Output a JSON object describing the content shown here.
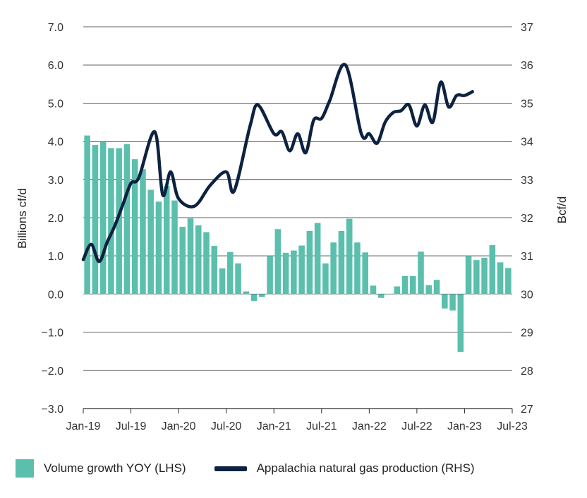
{
  "chart_data": {
    "type": "bar+line",
    "title": "",
    "ylabel_left": "Billions cf/d",
    "ylabel_right": "Bcf/d",
    "ylim_left": [
      -3.0,
      7.0
    ],
    "ylim_right": [
      27,
      37
    ],
    "left_ticks": [
      "7.0",
      "6.0",
      "5.0",
      "4.0",
      "3.0",
      "2.0",
      "1.0",
      "0.0",
      "−1.0",
      "−2.0",
      "−3.0"
    ],
    "left_tick_values": [
      7,
      6,
      5,
      4,
      3,
      2,
      1,
      0,
      -1,
      -2,
      -3
    ],
    "right_ticks": [
      "37",
      "36",
      "35",
      "34",
      "33",
      "32",
      "31",
      "30",
      "29",
      "28",
      "27"
    ],
    "right_tick_values": [
      37,
      36,
      35,
      34,
      33,
      32,
      31,
      30,
      29,
      28,
      27
    ],
    "x_ticks": [
      "Jan-19",
      "Jul-19",
      "Jan-20",
      "Jul-20",
      "Jan-21",
      "Jul-21",
      "Jan-22",
      "Jul-22",
      "Jan-23",
      "Jul-23"
    ],
    "x_tick_month_index": [
      0,
      6,
      12,
      18,
      24,
      30,
      36,
      42,
      48,
      54
    ],
    "months": [
      "Jan-19",
      "Feb-19",
      "Mar-19",
      "Apr-19",
      "May-19",
      "Jun-19",
      "Jul-19",
      "Aug-19",
      "Sep-19",
      "Oct-19",
      "Nov-19",
      "Dec-19",
      "Jan-20",
      "Feb-20",
      "Mar-20",
      "Apr-20",
      "May-20",
      "Jun-20",
      "Jul-20",
      "Aug-20",
      "Sep-20",
      "Oct-20",
      "Nov-20",
      "Dec-20",
      "Jan-21",
      "Feb-21",
      "Mar-21",
      "Apr-21",
      "May-21",
      "Jun-21",
      "Jul-21",
      "Aug-21",
      "Sep-21",
      "Oct-21",
      "Nov-21",
      "Dec-21",
      "Jan-22",
      "Feb-22",
      "Mar-22",
      "Apr-22",
      "May-22",
      "Jun-22",
      "Jul-22",
      "Aug-22",
      "Sep-22",
      "Oct-22",
      "Nov-22",
      "Dec-22",
      "Jan-23",
      "Feb-23",
      "Mar-23",
      "Apr-23",
      "May-23",
      "Jun-23"
    ],
    "series": [
      {
        "name": "Volume growth YOY (LHS)",
        "type": "bar",
        "axis": "left",
        "color": "#5bbfad",
        "values": [
          4.15,
          3.9,
          4.0,
          3.82,
          3.82,
          3.93,
          3.53,
          3.27,
          2.73,
          2.42,
          2.83,
          2.45,
          1.76,
          1.98,
          1.8,
          1.62,
          1.26,
          0.67,
          1.1,
          0.8,
          0.07,
          -0.18,
          -0.08,
          1.0,
          1.7,
          1.08,
          1.14,
          1.27,
          1.65,
          1.86,
          0.8,
          1.35,
          1.65,
          1.97,
          1.35,
          1.09,
          0.22,
          -0.1,
          0.0,
          0.2,
          0.47,
          0.47,
          1.11,
          0.23,
          0.37,
          -0.38,
          -0.43,
          -1.52,
          1.0,
          0.89,
          0.95,
          1.28,
          0.83,
          0.68
        ]
      },
      {
        "name": "Appalachia natural gas production (RHS)",
        "type": "line",
        "axis": "right",
        "color": "#0d2240",
        "values": [
          30.9,
          31.3,
          30.85,
          31.35,
          31.8,
          32.35,
          32.9,
          33.05,
          34.25,
          32.6,
          33.2,
          32.5,
          32.3,
          32.85,
          33.2,
          32.7,
          34.4,
          34.95,
          34.2,
          34.25,
          33.75,
          34.2,
          33.7,
          34.55,
          34.6,
          35.05,
          36.0,
          34.2,
          34.2,
          33.95,
          34.5,
          34.75,
          34.8,
          34.95,
          34.4,
          34.95,
          34.5,
          35.55,
          34.9,
          35.2,
          35.2,
          35.3
        ],
        "x_month_index": [
          0,
          1,
          2,
          3,
          4,
          5,
          6,
          7,
          9,
          10,
          11,
          12,
          14,
          16,
          18,
          19,
          21,
          22,
          24,
          25,
          26,
          27,
          28,
          29,
          30,
          31,
          33,
          35,
          36,
          37,
          38,
          39,
          40,
          41,
          42,
          43,
          44,
          45,
          46,
          47,
          48,
          49
        ]
      }
    ],
    "legend": [
      "Volume growth YOY (LHS)",
      "Appalachia natural gas production (RHS)"
    ],
    "legend_position": "bottom-left",
    "grid": true
  }
}
